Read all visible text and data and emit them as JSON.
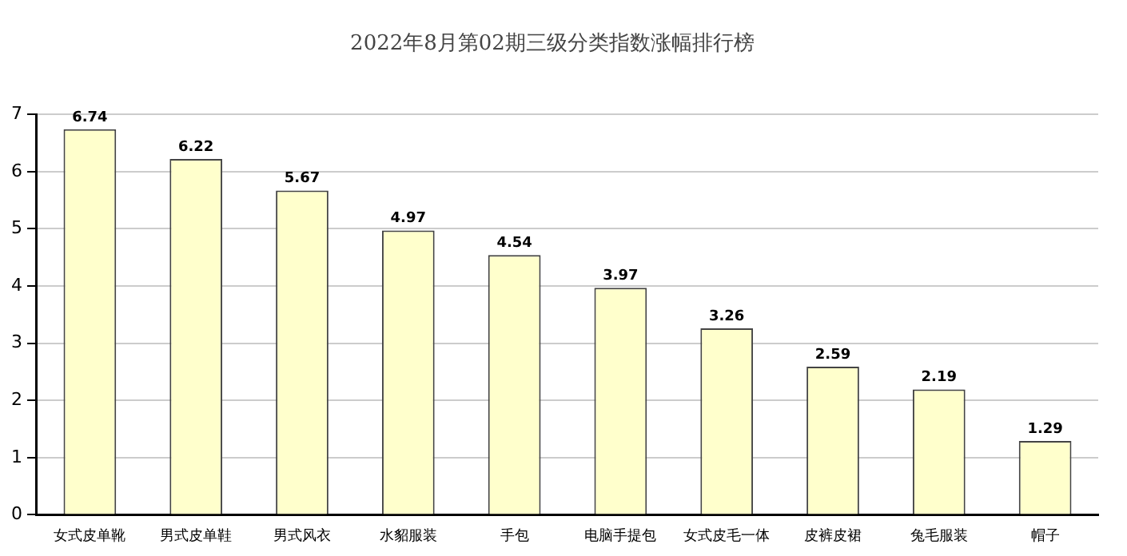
{
  "chart_data": {
    "type": "bar",
    "title": "2022年8月第02期三级分类指数涨幅排行榜",
    "categories": [
      "女式皮单靴",
      "男式皮单鞋",
      "男式风衣",
      "水貂服装",
      "手包",
      "电脑手提包",
      "女式皮毛一体",
      "皮裤皮裙",
      "兔毛服装",
      "帽子"
    ],
    "values": [
      6.74,
      6.22,
      5.67,
      4.97,
      4.54,
      3.97,
      3.26,
      2.59,
      2.19,
      1.29
    ],
    "color": "#ffffcc",
    "ylim": [
      0,
      7
    ],
    "yticks": [
      0,
      1,
      2,
      3,
      4,
      5,
      6,
      7
    ],
    "grid": "y",
    "data_labels": true,
    "legend": false
  }
}
